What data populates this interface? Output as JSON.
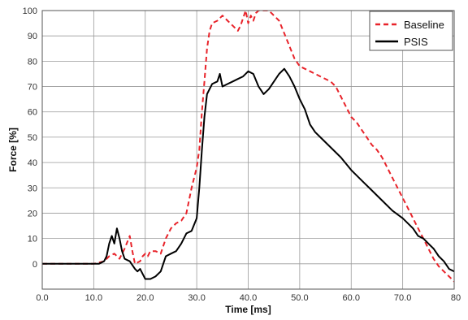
{
  "chart_data": {
    "type": "line",
    "title": "",
    "xlabel": "Time [ms]",
    "ylabel": "Force [%]",
    "xlim": [
      0,
      80
    ],
    "ylim": [
      -10,
      100
    ],
    "grid": true,
    "legend_position": "top-right",
    "x_ticks": [
      "0.0",
      "10.0",
      "20.0",
      "30.0",
      "40.0",
      "50.0",
      "60.0",
      "70.0",
      "80"
    ],
    "y_ticks": [
      "0",
      "10",
      "20",
      "30",
      "40",
      "50",
      "60",
      "70",
      "80",
      "90",
      "100"
    ],
    "series": [
      {
        "name": "Baseline",
        "color": "#e8232a",
        "dash": "dashed",
        "points": [
          [
            0,
            0
          ],
          [
            10,
            0
          ],
          [
            12,
            1
          ],
          [
            13,
            3
          ],
          [
            14,
            4
          ],
          [
            15,
            2
          ],
          [
            16,
            6
          ],
          [
            17,
            11
          ],
          [
            17.5,
            5
          ],
          [
            18,
            0
          ],
          [
            19,
            1
          ],
          [
            19.5,
            3
          ],
          [
            20,
            4
          ],
          [
            20.5,
            3
          ],
          [
            21,
            5
          ],
          [
            22,
            5
          ],
          [
            23,
            4
          ],
          [
            24,
            10
          ],
          [
            25,
            14
          ],
          [
            26,
            16
          ],
          [
            27,
            17
          ],
          [
            28,
            20
          ],
          [
            29,
            30
          ],
          [
            30,
            38
          ],
          [
            30.5,
            45
          ],
          [
            31,
            60
          ],
          [
            31.5,
            72
          ],
          [
            32,
            85
          ],
          [
            32.5,
            92
          ],
          [
            33,
            95
          ],
          [
            34,
            96
          ],
          [
            35,
            98
          ],
          [
            36,
            96
          ],
          [
            37,
            94
          ],
          [
            38,
            92
          ],
          [
            38.5,
            94
          ],
          [
            39,
            97
          ],
          [
            39.5,
            100
          ],
          [
            40,
            95
          ],
          [
            40.5,
            98
          ],
          [
            41,
            96
          ],
          [
            41.5,
            99
          ],
          [
            42,
            100
          ],
          [
            43,
            100
          ],
          [
            44,
            100
          ],
          [
            45,
            98
          ],
          [
            46,
            96
          ],
          [
            47,
            91
          ],
          [
            48,
            86
          ],
          [
            49,
            81
          ],
          [
            50,
            78
          ],
          [
            52,
            76
          ],
          [
            54,
            74
          ],
          [
            56,
            72
          ],
          [
            57,
            70
          ],
          [
            58,
            66
          ],
          [
            59,
            62
          ],
          [
            60,
            58
          ],
          [
            61,
            56
          ],
          [
            62,
            53
          ],
          [
            63,
            50
          ],
          [
            64,
            47
          ],
          [
            65,
            45
          ],
          [
            66,
            42
          ],
          [
            67,
            38
          ],
          [
            68,
            34
          ],
          [
            69,
            30
          ],
          [
            70,
            26
          ],
          [
            71,
            22
          ],
          [
            72,
            18
          ],
          [
            73,
            14
          ],
          [
            74,
            10
          ],
          [
            75,
            6
          ],
          [
            76,
            2
          ],
          [
            77,
            -1
          ],
          [
            78,
            -3
          ],
          [
            79,
            -5
          ],
          [
            80,
            -7
          ]
        ]
      },
      {
        "name": "PSIS",
        "color": "#000000",
        "dash": "solid",
        "points": [
          [
            0,
            0
          ],
          [
            11,
            0
          ],
          [
            12,
            1
          ],
          [
            12.5,
            3
          ],
          [
            13,
            8
          ],
          [
            13.5,
            11
          ],
          [
            14,
            8
          ],
          [
            14.5,
            14
          ],
          [
            15,
            10
          ],
          [
            15.5,
            5
          ],
          [
            16,
            2
          ],
          [
            17,
            1
          ],
          [
            18,
            -2
          ],
          [
            18.5,
            -3
          ],
          [
            19,
            -2
          ],
          [
            19.5,
            -4
          ],
          [
            20,
            -6
          ],
          [
            21,
            -6
          ],
          [
            22,
            -5
          ],
          [
            23,
            -3
          ],
          [
            24,
            3
          ],
          [
            25,
            4
          ],
          [
            26,
            5
          ],
          [
            27,
            8
          ],
          [
            28,
            12
          ],
          [
            29,
            13
          ],
          [
            30,
            18
          ],
          [
            30.5,
            30
          ],
          [
            31,
            45
          ],
          [
            31.5,
            58
          ],
          [
            32,
            67
          ],
          [
            33,
            71
          ],
          [
            34,
            72
          ],
          [
            34.5,
            75
          ],
          [
            35,
            70
          ],
          [
            36,
            71
          ],
          [
            37,
            72
          ],
          [
            38,
            73
          ],
          [
            39,
            74
          ],
          [
            40,
            76
          ],
          [
            41,
            75
          ],
          [
            42,
            70
          ],
          [
            43,
            67
          ],
          [
            44,
            69
          ],
          [
            45,
            72
          ],
          [
            46,
            75
          ],
          [
            47,
            77
          ],
          [
            48,
            74
          ],
          [
            49,
            70
          ],
          [
            50,
            65
          ],
          [
            51,
            61
          ],
          [
            52,
            55
          ],
          [
            53,
            52
          ],
          [
            54,
            50
          ],
          [
            56,
            46
          ],
          [
            58,
            42
          ],
          [
            60,
            37
          ],
          [
            62,
            33
          ],
          [
            64,
            29
          ],
          [
            66,
            25
          ],
          [
            68,
            21
          ],
          [
            70,
            18
          ],
          [
            72,
            14
          ],
          [
            73,
            11
          ],
          [
            74,
            10
          ],
          [
            75,
            8
          ],
          [
            76,
            6
          ],
          [
            77,
            3
          ],
          [
            78,
            1
          ],
          [
            79,
            -2
          ],
          [
            80,
            -3
          ]
        ]
      }
    ]
  }
}
